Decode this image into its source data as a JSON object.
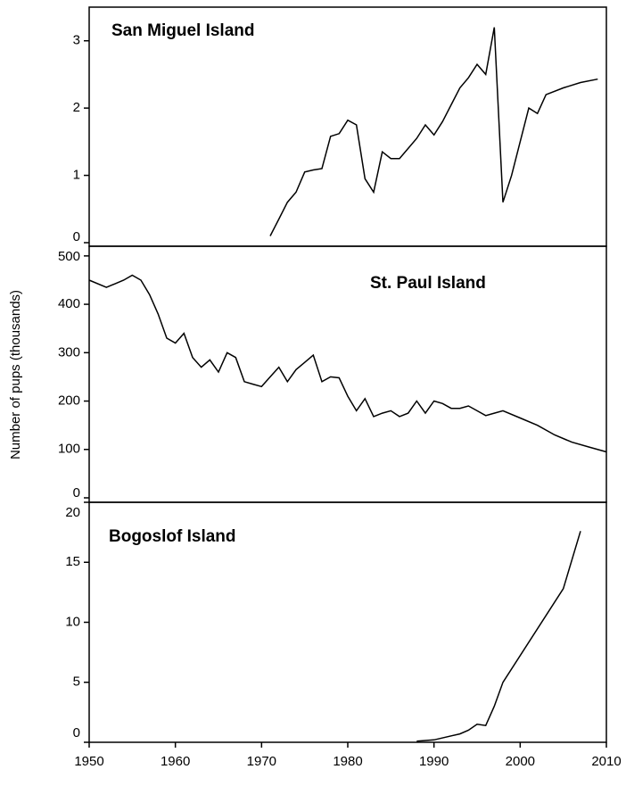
{
  "chart_data": [
    {
      "type": "line",
      "title": "San Miguel Island",
      "xlim": [
        1950,
        2010
      ],
      "ylim": [
        0,
        3.5
      ],
      "yticks": [
        0,
        1,
        2,
        3
      ],
      "color": "#000000",
      "x": [
        1971,
        1972,
        1973,
        1974,
        1975,
        1976,
        1977,
        1978,
        1979,
        1980,
        1981,
        1982,
        1983,
        1984,
        1985,
        1986,
        1987,
        1988,
        1989,
        1990,
        1991,
        1992,
        1993,
        1994,
        1995,
        1996,
        1997,
        1998,
        1999,
        2000,
        2001,
        2002,
        2003,
        2005,
        2007,
        2009
      ],
      "values": [
        0.1,
        0.35,
        0.6,
        0.75,
        1.05,
        1.08,
        1.1,
        1.58,
        1.62,
        1.82,
        1.75,
        0.95,
        0.75,
        1.35,
        1.25,
        1.25,
        1.4,
        1.55,
        1.75,
        1.6,
        1.8,
        2.05,
        2.3,
        2.45,
        2.65,
        2.5,
        3.2,
        0.6,
        1.0,
        1.5,
        2.0,
        1.92,
        2.2,
        2.3,
        2.38,
        2.43
      ]
    },
    {
      "type": "line",
      "title": "St. Paul Island",
      "ylabel": "Number of pups (thousands)",
      "xlim": [
        1950,
        2010
      ],
      "ylim": [
        0,
        520
      ],
      "yticks": [
        0,
        100,
        200,
        300,
        400,
        500
      ],
      "color": "#000000",
      "x": [
        1950,
        1952,
        1954,
        1955,
        1956,
        1957,
        1958,
        1959,
        1960,
        1961,
        1962,
        1963,
        1964,
        1965,
        1966,
        1967,
        1968,
        1969,
        1970,
        1971,
        1972,
        1973,
        1974,
        1975,
        1976,
        1977,
        1978,
        1979,
        1980,
        1981,
        1982,
        1983,
        1984,
        1985,
        1986,
        1987,
        1988,
        1989,
        1990,
        1991,
        1992,
        1993,
        1994,
        1995,
        1996,
        1997,
        1998,
        2000,
        2002,
        2004,
        2006,
        2008,
        2010
      ],
      "values": [
        450,
        435,
        450,
        460,
        450,
        420,
        380,
        330,
        320,
        340,
        290,
        270,
        285,
        260,
        300,
        290,
        240,
        235,
        230,
        250,
        270,
        240,
        265,
        280,
        295,
        240,
        250,
        248,
        210,
        180,
        205,
        168,
        175,
        180,
        168,
        175,
        200,
        175,
        200,
        195,
        185,
        185,
        190,
        180,
        170,
        175,
        180,
        165,
        150,
        130,
        115,
        105,
        95
      ]
    },
    {
      "type": "line",
      "title": "Bogoslof Island",
      "xlim": [
        1950,
        2010
      ],
      "ylim": [
        0,
        20
      ],
      "yticks": [
        0,
        5,
        10,
        15,
        20
      ],
      "color": "#000000",
      "xticks": [
        1950,
        1960,
        1970,
        1980,
        1990,
        2000,
        2010
      ],
      "x": [
        1988,
        1990,
        1993,
        1994,
        1995,
        1996,
        1997,
        1998,
        2005,
        2007
      ],
      "values": [
        0.1,
        0.2,
        0.7,
        1.0,
        1.5,
        1.4,
        3.0,
        5.0,
        12.8,
        17.6
      ]
    }
  ]
}
